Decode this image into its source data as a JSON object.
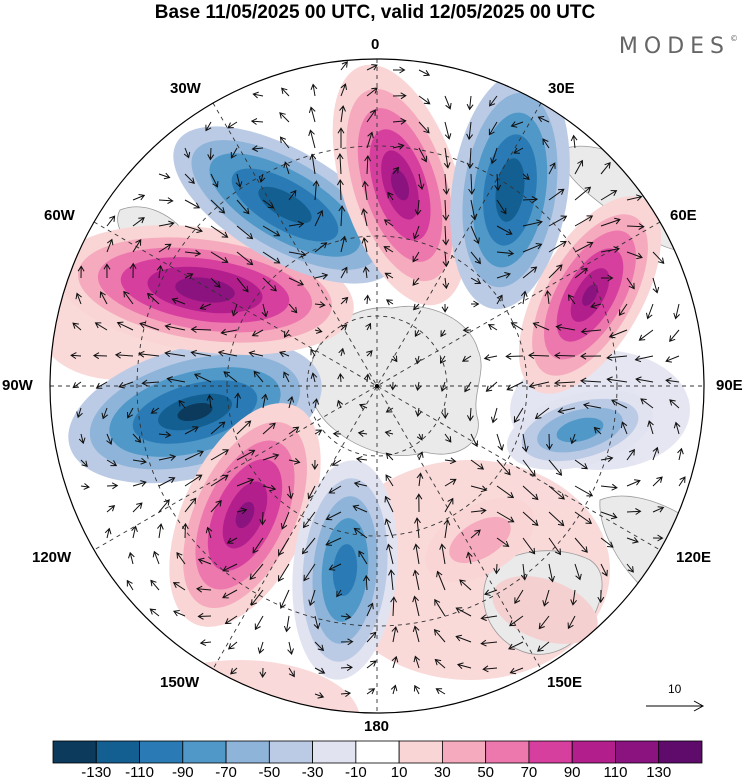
{
  "title": "Base 11/05/2025 00 UTC, valid 12/05/2025 00 UTC",
  "brand": {
    "text": "MODES",
    "mark": "©"
  },
  "longitude_labels": {
    "top": "0",
    "top_right": "30E",
    "upper_right": "60E",
    "right": "90E",
    "lower_right": "120E",
    "bottom_right": "150E",
    "bottom": "180",
    "bottom_left": "150W",
    "lower_left": "120W",
    "left": "90W",
    "upper_left": "60W",
    "top_left": "30W"
  },
  "vector_key": {
    "label": "10",
    "icon": "arrow-right-icon"
  },
  "colorbar": {
    "labels": [
      "-130",
      "-110",
      "-90",
      "-70",
      "-50",
      "-30",
      "-10",
      "10",
      "30",
      "50",
      "70",
      "90",
      "110",
      "130"
    ],
    "colors": [
      "#0b3a5c",
      "#145f91",
      "#2a7bb5",
      "#4f98c8",
      "#8eb4d9",
      "#bccbe5",
      "#e2e3f1",
      "#ffffff",
      "#f9d5d5",
      "#f5aabd",
      "#ec78ad",
      "#d73f9e",
      "#b21f8d",
      "#8a1380",
      "#5e0b6b"
    ]
  },
  "map_projection": "south-polar-stereographic",
  "land_color": "#eaeaea"
}
